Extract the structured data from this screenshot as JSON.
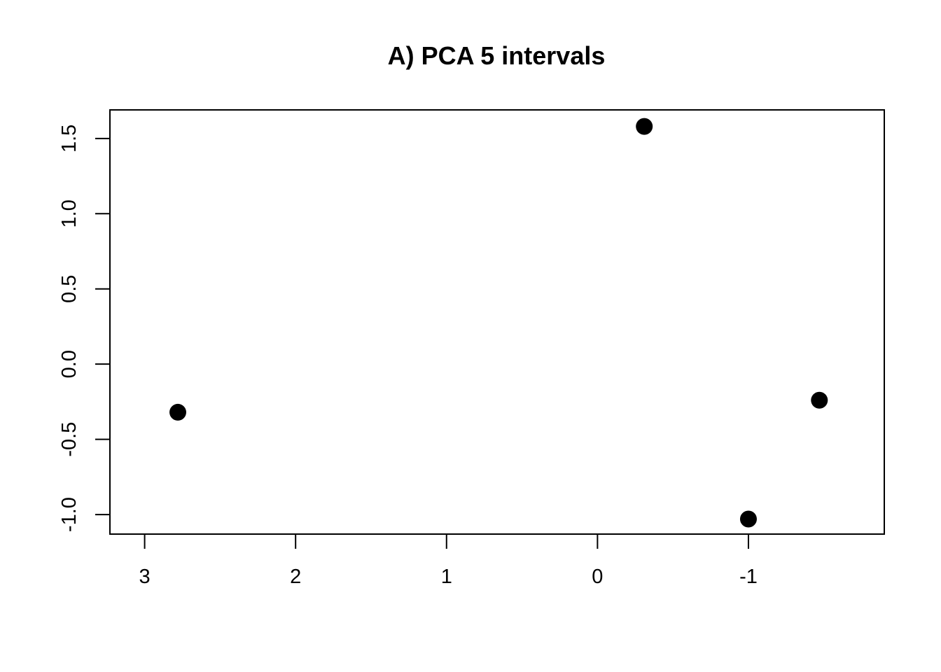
{
  "chart_data": {
    "type": "scatter",
    "title": "A) PCA 5 intervals",
    "xlabel": "",
    "ylabel": "",
    "x_axis_reversed": true,
    "xlim": [
      3.23,
      -1.9
    ],
    "ylim": [
      -1.13,
      1.69
    ],
    "x_ticks": [
      3,
      2,
      1,
      0,
      -1
    ],
    "x_tick_labels": [
      "3",
      "2",
      "1",
      "0",
      "-1"
    ],
    "y_ticks": [
      -1.0,
      -0.5,
      0.0,
      0.5,
      1.0,
      1.5
    ],
    "y_tick_labels": [
      "-1.0",
      "-0.5",
      "0.0",
      "0.5",
      "1.0",
      "1.5"
    ],
    "grid": false,
    "legend": "none",
    "marker_color": "#000000",
    "points": [
      {
        "x": 2.78,
        "y": -0.32
      },
      {
        "x": -0.31,
        "y": 1.58
      },
      {
        "x": -1.0,
        "y": -1.03
      },
      {
        "x": -1.47,
        "y": -0.24
      }
    ]
  }
}
